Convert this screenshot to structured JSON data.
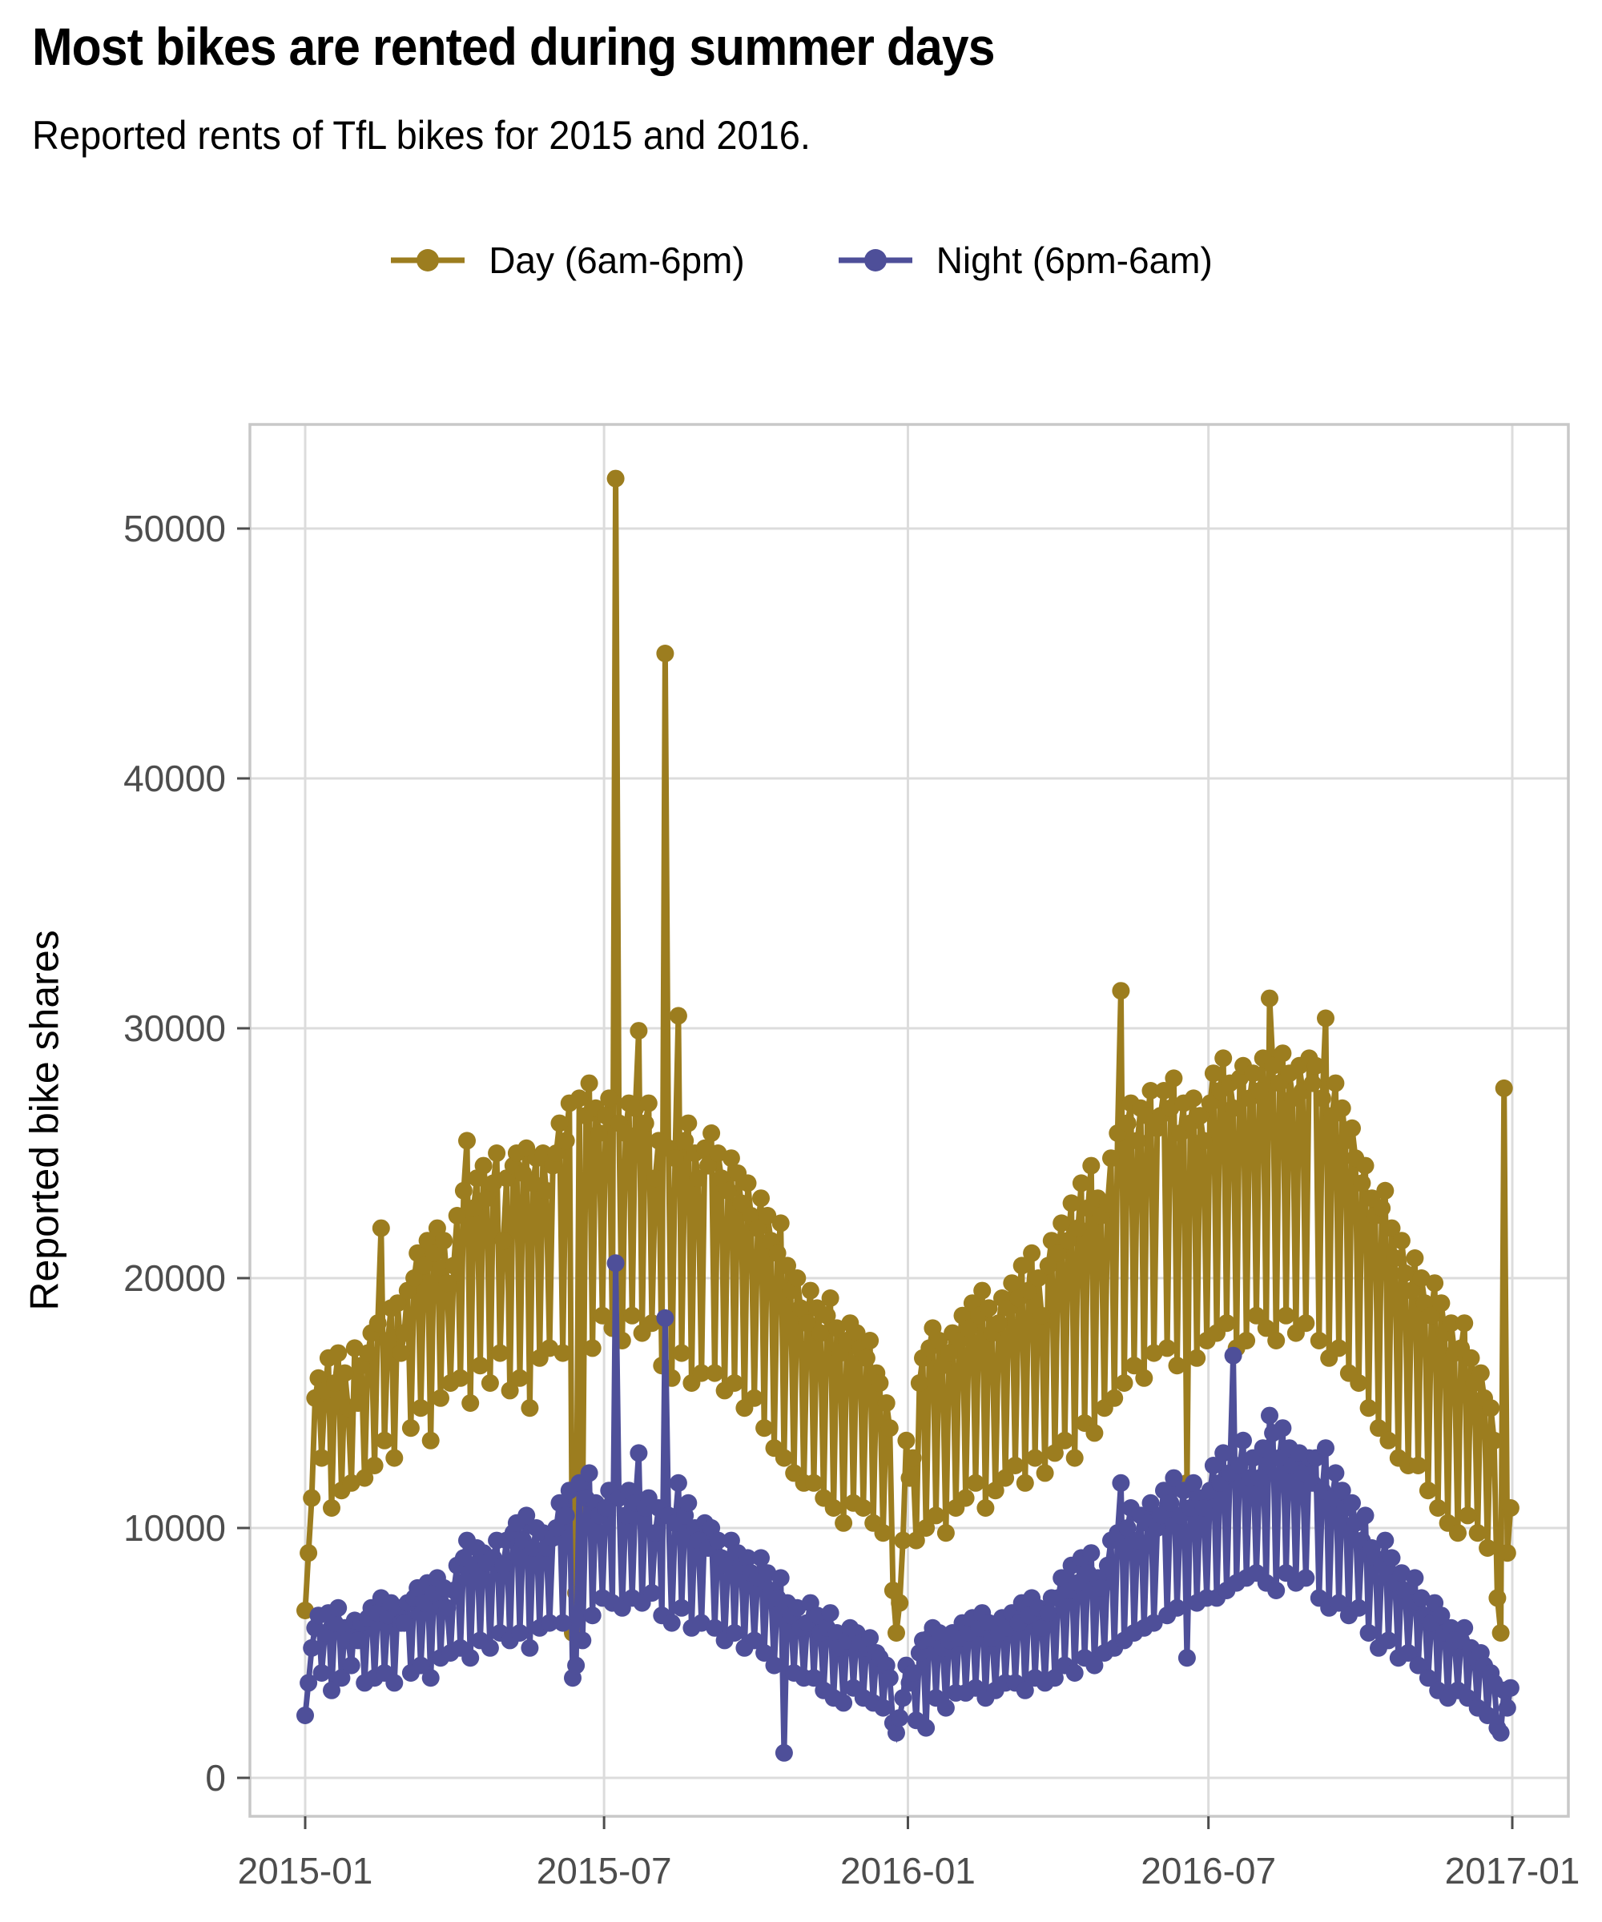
{
  "header": {
    "title": "Most bikes are rented during summer days",
    "subtitle": "Reported rents of TfL bikes for 2015 and 2016."
  },
  "legend": {
    "items": [
      {
        "label": "Day (6am-6pm)",
        "color": "#9C7D1F"
      },
      {
        "label": "Night (6pm-6am)",
        "color": "#4E4F99"
      }
    ]
  },
  "chart_data": {
    "type": "line",
    "title": "Most bikes are rented during summer days",
    "subtitle": "Reported rents of TfL bikes for 2015 and 2016.",
    "xlabel": "",
    "ylabel": "Reported bike shares",
    "x_start": "2015-01-01",
    "x_step_days": 2,
    "value_unit": 100,
    "ylim": [
      0,
      54000
    ],
    "y_ticks": [
      0,
      10000,
      20000,
      30000,
      40000,
      50000
    ],
    "x_ticks": [
      {
        "label": "2015-01",
        "day": 0
      },
      {
        "label": "2015-07",
        "day": 181
      },
      {
        "label": "2016-01",
        "day": 365
      },
      {
        "label": "2016-07",
        "day": 547
      },
      {
        "label": "2017-01",
        "day": 731
      }
    ],
    "grid": true,
    "legend_position": "top",
    "marker": "circle",
    "series": [
      {
        "name": "Day (6am-6pm)",
        "color": "#9C7D1F",
        "values": [
          67,
          90,
          112,
          152,
          160,
          128,
          155,
          168,
          108,
          158,
          170,
          115,
          162,
          148,
          118,
          172,
          150,
          165,
          120,
          170,
          178,
          125,
          182,
          220,
          135,
          175,
          188,
          128,
          190,
          170,
          178,
          195,
          140,
          200,
          210,
          148,
          205,
          215,
          135,
          210,
          220,
          152,
          215,
          198,
          158,
          205,
          225,
          160,
          235,
          255,
          150,
          228,
          240,
          165,
          245,
          232,
          158,
          238,
          250,
          170,
          215,
          240,
          155,
          245,
          250,
          160,
          242,
          252,
          148,
          238,
          248,
          168,
          250,
          235,
          172,
          245,
          250,
          262,
          170,
          255,
          270,
          58,
          74,
          272,
          105,
          265,
          278,
          172,
          268,
          258,
          185,
          265,
          272,
          180,
          520,
          262,
          175,
          258,
          270,
          185,
          268,
          299,
          178,
          262,
          270,
          182,
          240,
          255,
          165,
          450,
          252,
          160,
          248,
          305,
          170,
          255,
          262,
          158,
          250,
          240,
          162,
          252,
          245,
          258,
          162,
          250,
          240,
          155,
          235,
          248,
          158,
          242,
          230,
          148,
          238,
          225,
          152,
          220,
          232,
          140,
          225,
          215,
          132,
          210,
          222,
          128,
          205,
          195,
          122,
          200,
          188,
          118,
          182,
          195,
          118,
          188,
          178,
          112,
          185,
          192,
          108,
          180,
          170,
          102,
          175,
          182,
          110,
          178,
          172,
          108,
          168,
          175,
          102,
          162,
          158,
          98,
          150,
          140,
          75,
          58,
          70,
          95,
          135,
          120,
          128,
          95,
          158,
          168,
          100,
          172,
          180,
          105,
          175,
          165,
          98,
          170,
          178,
          108,
          175,
          185,
          112,
          180,
          190,
          118,
          185,
          195,
          108,
          188,
          178,
          115,
          182,
          192,
          120,
          188,
          198,
          125,
          192,
          205,
          118,
          195,
          210,
          128,
          200,
          185,
          122,
          205,
          215,
          130,
          210,
          222,
          135,
          215,
          230,
          128,
          220,
          238,
          142,
          228,
          245,
          138,
          232,
          225,
          148,
          230,
          248,
          152,
          258,
          315,
          158,
          262,
          270,
          165,
          255,
          268,
          160,
          265,
          275,
          170,
          260,
          265,
          275,
          172,
          268,
          280,
          165,
          258,
          270,
          118,
          262,
          272,
          168,
          265,
          255,
          175,
          270,
          282,
          178,
          275,
          288,
          182,
          278,
          268,
          172,
          280,
          285,
          175,
          272,
          282,
          185,
          275,
          288,
          180,
          312,
          285,
          175,
          278,
          290,
          185,
          282,
          272,
          178,
          285,
          275,
          182,
          288,
          278,
          285,
          175,
          272,
          304,
          168,
          265,
          278,
          172,
          268,
          255,
          162,
          260,
          248,
          158,
          238,
          245,
          148,
          232,
          225,
          140,
          228,
          235,
          135,
          220,
          208,
          128,
          215,
          202,
          125,
          195,
          208,
          125,
          200,
          190,
          115,
          185,
          198,
          108,
          190,
          178,
          102,
          182,
          170,
          98,
          172,
          182,
          105,
          168,
          158,
          98,
          162,
          152,
          92,
          148,
          135,
          72,
          58,
          276,
          90,
          108
        ]
      },
      {
        "name": "Night (6pm-6am)",
        "color": "#4E4F99",
        "values": [
          25,
          38,
          52,
          60,
          65,
          42,
          58,
          66,
          35,
          62,
          68,
          40,
          60,
          55,
          45,
          63,
          55,
          62,
          38,
          64,
          68,
          40,
          66,
          72,
          42,
          65,
          70,
          38,
          68,
          62,
          62,
          70,
          42,
          72,
          76,
          45,
          70,
          78,
          40,
          74,
          80,
          48,
          76,
          68,
          50,
          75,
          85,
          52,
          88,
          95,
          48,
          85,
          92,
          55,
          90,
          86,
          52,
          88,
          95,
          58,
          85,
          95,
          55,
          98,
          102,
          58,
          95,
          105,
          52,
          92,
          100,
          60,
          98,
          92,
          62,
          96,
          100,
          110,
          62,
          105,
          115,
          40,
          45,
          118,
          55,
          112,
          122,
          65,
          110,
          105,
          72,
          108,
          115,
          70,
          206,
          112,
          68,
          105,
          115,
          72,
          110,
          130,
          70,
          108,
          112,
          74,
          98,
          108,
          65,
          184,
          105,
          62,
          102,
          118,
          68,
          105,
          110,
          60,
          100,
          95,
          62,
          102,
          92,
          100,
          60,
          95,
          88,
          55,
          85,
          95,
          58,
          90,
          85,
          52,
          88,
          82,
          55,
          80,
          88,
          50,
          82,
          75,
          45,
          72,
          80,
          10,
          70,
          65,
          42,
          68,
          60,
          40,
          62,
          70,
          40,
          65,
          58,
          35,
          60,
          66,
          32,
          58,
          52,
          30,
          55,
          60,
          36,
          58,
          54,
          32,
          52,
          56,
          30,
          50,
          48,
          28,
          45,
          40,
          22,
          18,
          24,
          32,
          45,
          38,
          42,
          23,
          50,
          55,
          20,
          56,
          60,
          32,
          58,
          52,
          28,
          55,
          58,
          34,
          56,
          62,
          34,
          58,
          64,
          36,
          60,
          66,
          32,
          62,
          56,
          35,
          58,
          64,
          38,
          60,
          66,
          38,
          62,
          70,
          35,
          65,
          72,
          40,
          68,
          60,
          38,
          66,
          72,
          40,
          72,
          80,
          45,
          75,
          85,
          42,
          78,
          88,
          48,
          82,
          90,
          45,
          80,
          76,
          50,
          85,
          95,
          52,
          98,
          118,
          55,
          100,
          108,
          58,
          95,
          105,
          60,
          102,
          110,
          62,
          100,
          105,
          115,
          65,
          110,
          120,
          68,
          105,
          115,
          48,
          108,
          118,
          70,
          112,
          108,
          72,
          115,
          125,
          72,
          118,
          130,
          75,
          122,
          169,
          78,
          125,
          135,
          80,
          120,
          128,
          82,
          120,
          132,
          78,
          145,
          138,
          75,
          128,
          140,
          82,
          132,
          125,
          78,
          130,
          122,
          80,
          128,
          118,
          128,
          72,
          115,
          132,
          68,
          112,
          122,
          70,
          115,
          108,
          65,
          110,
          102,
          68,
          95,
          105,
          58,
          92,
          88,
          52,
          85,
          95,
          55,
          88,
          78,
          48,
          82,
          75,
          50,
          70,
          80,
          45,
          72,
          65,
          40,
          62,
          70,
          35,
          65,
          58,
          32,
          60,
          55,
          35,
          55,
          60,
          32,
          52,
          48,
          28,
          50,
          45,
          25,
          42,
          38,
          20,
          18,
          35,
          28,
          36
        ]
      }
    ]
  }
}
